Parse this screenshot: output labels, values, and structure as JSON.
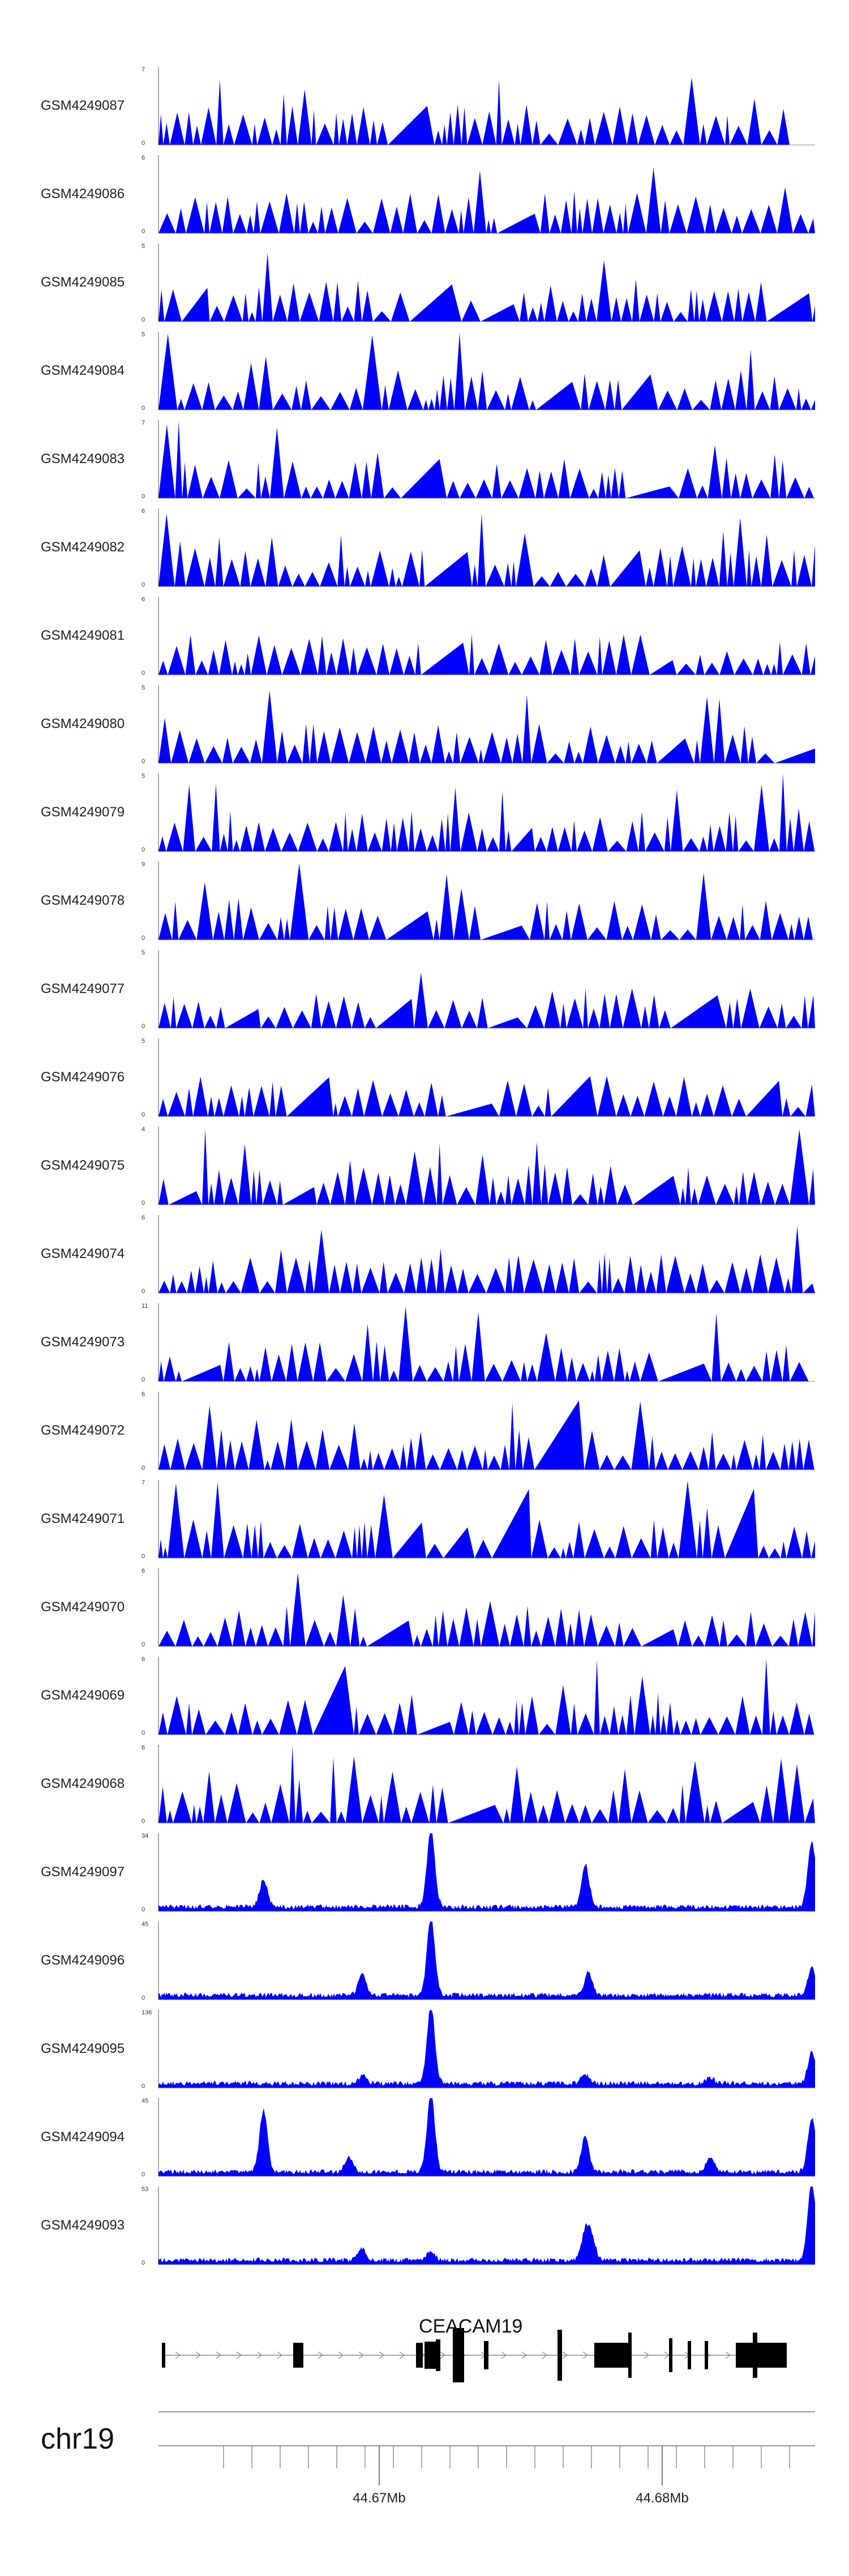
{
  "chart_data": {
    "type": "area",
    "series": [
      {
        "name": "GSM4249087",
        "ymax": "7",
        "ymin": "0"
      },
      {
        "name": "GSM4249086",
        "ymax": "6",
        "ymin": "0"
      },
      {
        "name": "GSM4249085",
        "ymax": "5",
        "ymin": "0"
      },
      {
        "name": "GSM4249084",
        "ymax": "5",
        "ymin": "0"
      },
      {
        "name": "GSM4249083",
        "ymax": "7",
        "ymin": "0"
      },
      {
        "name": "GSM4249082",
        "ymax": "6",
        "ymin": "0"
      },
      {
        "name": "GSM4249081",
        "ymax": "6",
        "ymin": "0"
      },
      {
        "name": "GSM4249080",
        "ymax": "5",
        "ymin": "0"
      },
      {
        "name": "GSM4249079",
        "ymax": "5",
        "ymin": "0"
      },
      {
        "name": "GSM4249078",
        "ymax": "9",
        "ymin": "0"
      },
      {
        "name": "GSM4249077",
        "ymax": "5",
        "ymin": "0"
      },
      {
        "name": "GSM4249076",
        "ymax": "5",
        "ymin": "0"
      },
      {
        "name": "GSM4249075",
        "ymax": "4",
        "ymin": "0"
      },
      {
        "name": "GSM4249074",
        "ymax": "6",
        "ymin": "0"
      },
      {
        "name": "GSM4249073",
        "ymax": "11",
        "ymin": "0"
      },
      {
        "name": "GSM4249072",
        "ymax": "6",
        "ymin": "0"
      },
      {
        "name": "GSM4249071",
        "ymax": "7",
        "ymin": "0"
      },
      {
        "name": "GSM4249070",
        "ymax": "6",
        "ymin": "0"
      },
      {
        "name": "GSM4249069",
        "ymax": "6",
        "ymin": "0"
      },
      {
        "name": "GSM4249068",
        "ymax": "6",
        "ymin": "0"
      },
      {
        "name": "GSM4249097",
        "ymax": "34",
        "ymin": "0"
      },
      {
        "name": "GSM4249096",
        "ymax": "45",
        "ymin": "0"
      },
      {
        "name": "GSM4249095",
        "ymax": "136",
        "ymin": "0"
      },
      {
        "name": "GSM4249094",
        "ymax": "45",
        "ymin": "0"
      },
      {
        "name": "GSM4249093",
        "ymax": "53",
        "ymin": "0"
      }
    ],
    "gene": {
      "name": "CEACAM19"
    },
    "chromosome": "chr19",
    "axis_ticks": [
      {
        "label": "44.67Mb",
        "value": 44.67
      },
      {
        "label": "44.68Mb",
        "value": 44.68
      }
    ],
    "fill_color": "#0000ff"
  }
}
